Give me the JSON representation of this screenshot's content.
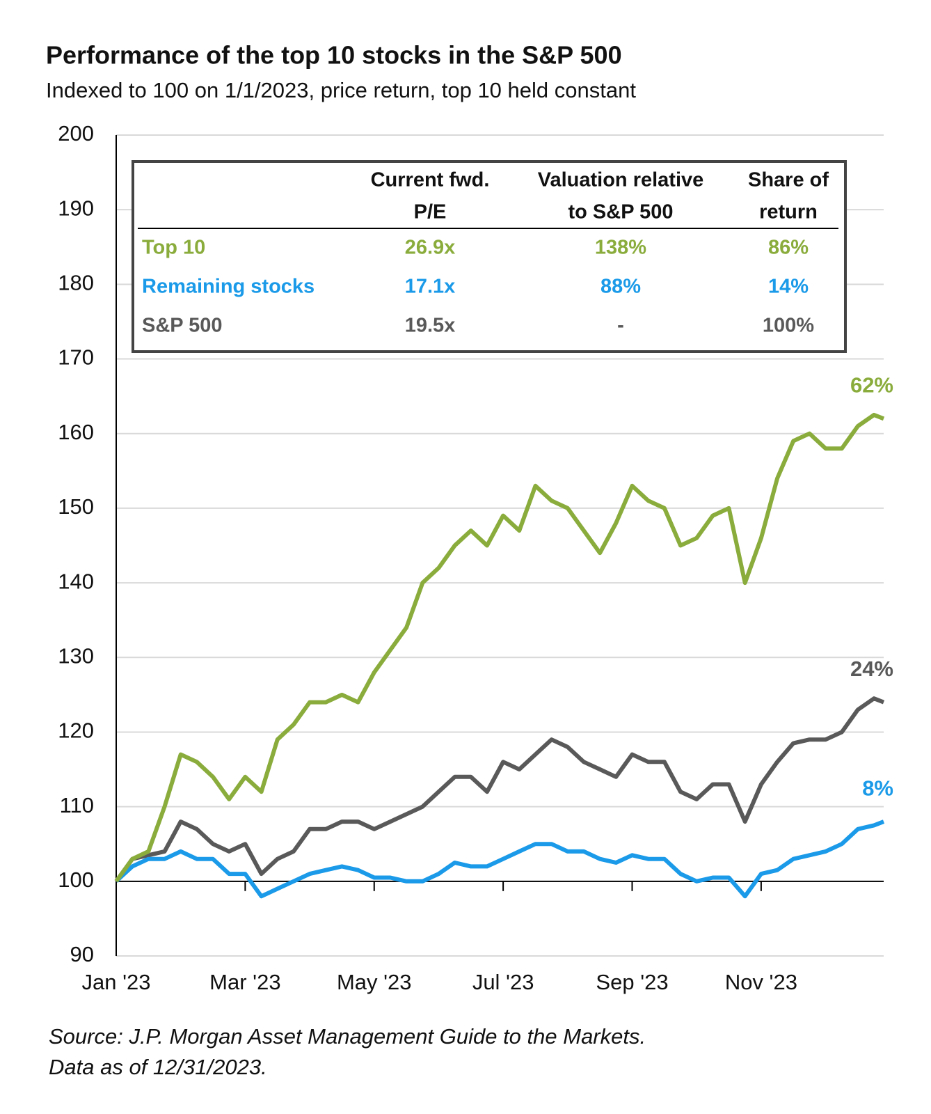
{
  "chart_data": {
    "type": "line",
    "title": "Performance of the top 10 stocks in the S&P 500",
    "subtitle": "Indexed to 100 on 1/1/2023, price return, top 10 held constant",
    "x": [
      0,
      0.25,
      0.5,
      0.75,
      1,
      1.25,
      1.5,
      1.75,
      2,
      2.25,
      2.5,
      2.75,
      3,
      3.25,
      3.5,
      3.75,
      4,
      4.25,
      4.5,
      4.75,
      5,
      5.25,
      5.5,
      5.75,
      6,
      6.25,
      6.5,
      6.75,
      7,
      7.25,
      7.5,
      7.75,
      8,
      8.25,
      8.5,
      8.75,
      9,
      9.25,
      9.5,
      9.75,
      10,
      10.25,
      10.5,
      10.75,
      11,
      11.25,
      11.5,
      11.75,
      11.9
    ],
    "xlim": [
      0,
      11.9
    ],
    "xticks": [
      {
        "value": 0,
        "label": "Jan '23"
      },
      {
        "value": 2,
        "label": "Mar '23"
      },
      {
        "value": 4,
        "label": "May '23"
      },
      {
        "value": 6,
        "label": "Jul '23"
      },
      {
        "value": 8,
        "label": "Sep '23"
      },
      {
        "value": 10,
        "label": "Nov '23"
      }
    ],
    "ylim": [
      90,
      200
    ],
    "yticks": [
      90,
      100,
      110,
      120,
      130,
      140,
      150,
      160,
      170,
      180,
      190,
      200
    ],
    "grid": true,
    "reference_line": 100,
    "series": [
      {
        "name": "Top 10",
        "color": "#8aac3c",
        "end_label": "62%",
        "values": [
          100,
          103,
          104,
          110,
          117,
          116,
          114,
          111,
          114,
          112,
          119,
          121,
          124,
          124,
          125,
          124,
          128,
          131,
          134,
          140,
          142,
          145,
          147,
          145,
          149,
          147,
          153,
          151,
          150,
          147,
          144,
          148,
          153,
          151,
          150,
          145,
          146,
          149,
          150,
          140,
          146,
          154,
          159,
          160,
          158,
          158,
          161,
          162.5,
          162
        ]
      },
      {
        "name": "Remaining stocks",
        "color": "#1a9ae8",
        "end_label": "8%",
        "values": [
          100,
          102,
          103,
          103,
          104,
          103,
          103,
          101,
          101,
          98,
          99,
          100,
          101,
          101.5,
          102,
          101.5,
          100.5,
          100.5,
          100,
          100,
          101,
          102.5,
          102,
          102,
          103,
          104,
          105,
          105,
          104,
          104,
          103,
          102.5,
          103.5,
          103,
          103,
          101,
          100,
          100.5,
          100.5,
          98,
          101,
          101.5,
          103,
          103.5,
          104,
          105,
          107,
          107.5,
          108
        ]
      },
      {
        "name": "S&P 500",
        "color": "#595959",
        "end_label": "24%",
        "values": [
          100,
          103,
          103.5,
          104,
          108,
          107,
          105,
          104,
          105,
          101,
          103,
          104,
          107,
          107,
          108,
          108,
          107,
          108,
          109,
          110,
          112,
          114,
          114,
          112,
          116,
          115,
          117,
          119,
          118,
          116,
          115,
          114,
          117,
          116,
          116,
          112,
          111,
          113,
          113,
          108,
          113,
          116,
          118.5,
          119,
          119,
          120,
          123,
          124.5,
          124
        ]
      }
    ],
    "table": {
      "headers": [
        [
          "Current fwd.",
          "P/E"
        ],
        [
          "Valuation relative",
          "to S&P 500"
        ],
        [
          "Share of",
          "return"
        ]
      ],
      "rows": [
        [
          "26.9x",
          "138%",
          "86%"
        ],
        [
          "17.1x",
          "88%",
          "14%"
        ],
        [
          "19.5x",
          "-",
          "100%"
        ]
      ]
    },
    "source": [
      "Source: J.P. Morgan Asset Management Guide to the Markets.",
      "Data as of 12/31/2023."
    ]
  }
}
